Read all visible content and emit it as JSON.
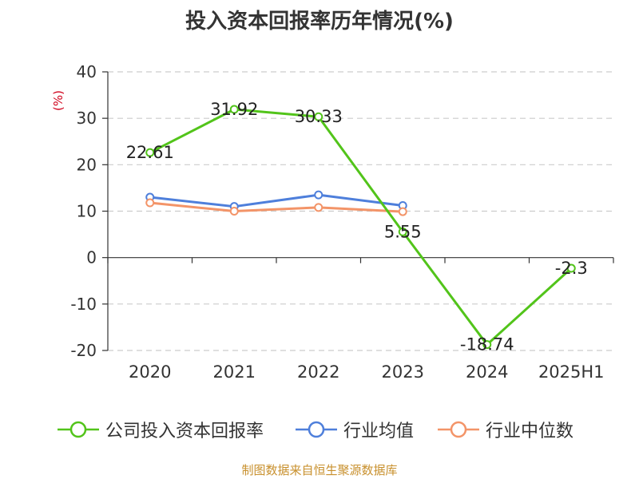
{
  "chart_data": {
    "type": "line",
    "title": "投入资本回报率历年情况(%)",
    "ylabel": "(%)",
    "xlabel": "",
    "categories": [
      "2020",
      "2021",
      "2022",
      "2023",
      "2024",
      "2025H1"
    ],
    "ylim": [
      -20,
      40
    ],
    "yticks": [
      40,
      30,
      20,
      10,
      0,
      -10,
      -20
    ],
    "grid": true,
    "legend_position": "bottom",
    "series": [
      {
        "name": "公司投入资本回报率",
        "color": "#52c41a",
        "values": [
          22.61,
          31.92,
          30.33,
          5.55,
          -18.74,
          -2.3
        ],
        "labels": [
          "22.61",
          "31.92",
          "30.33",
          "5.55",
          "-18.74",
          "-2.3"
        ]
      },
      {
        "name": "行业均值",
        "color": "#4e7fdb",
        "values": [
          13.0,
          11.0,
          13.5,
          11.2,
          null,
          null
        ]
      },
      {
        "name": "行业中位数",
        "color": "#f39468",
        "values": [
          11.8,
          10.0,
          10.8,
          9.9,
          null,
          null
        ]
      }
    ]
  },
  "source": "制图数据来自恒生聚源数据库"
}
